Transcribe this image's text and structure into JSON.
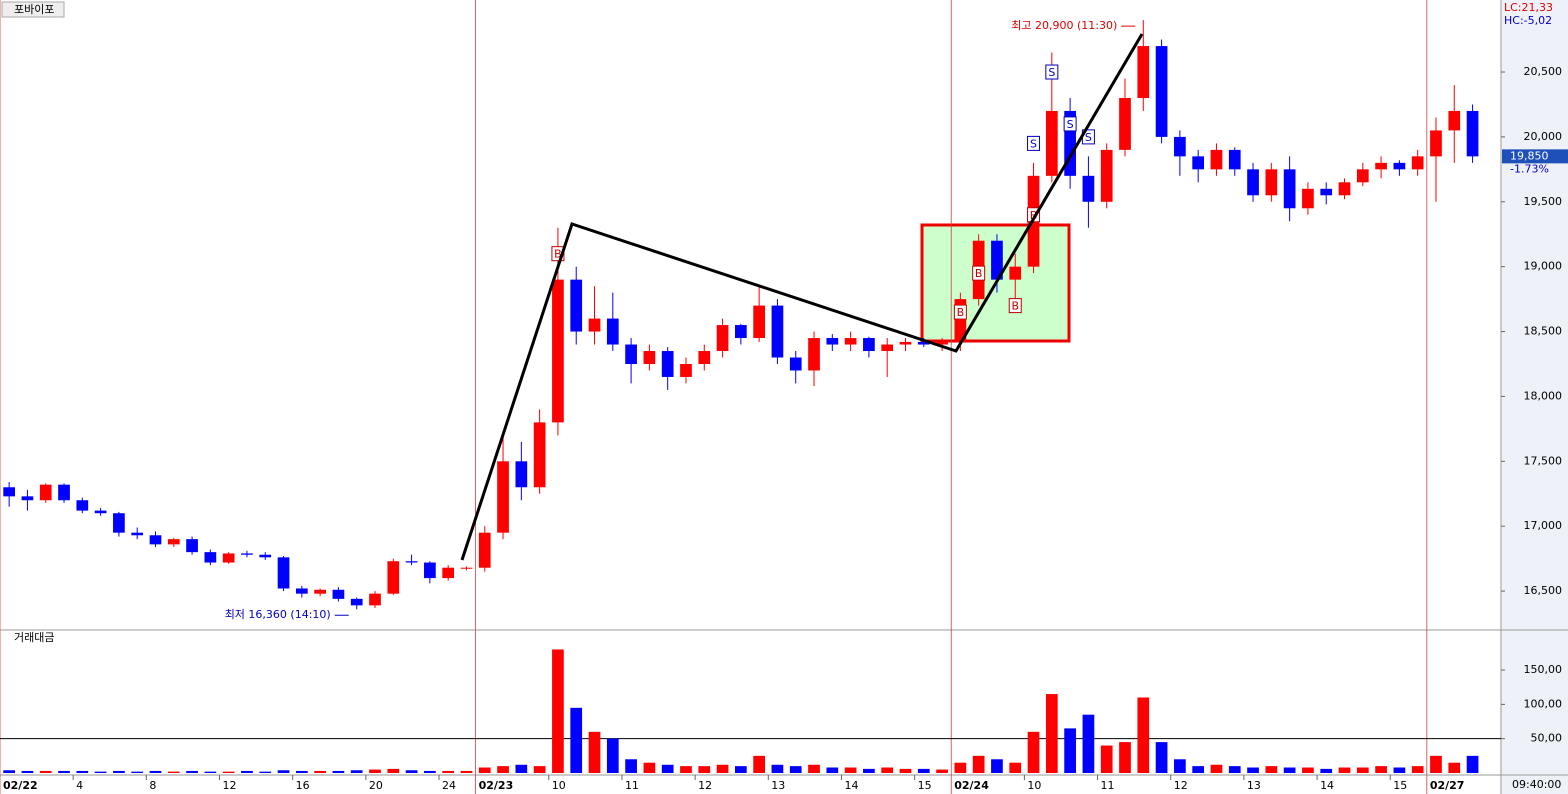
{
  "chart_data": [
    {
      "type": "candlestick",
      "title": "포바이포",
      "legend": [
        "LC:21,33",
        "HC:-5,02"
      ],
      "open": [
        17300,
        17230,
        17200,
        17320,
        17200,
        17120,
        17100,
        16950,
        16930,
        16860,
        16900,
        16800,
        16720,
        16790,
        16780,
        16760,
        16520,
        16480,
        16510,
        16440,
        16390,
        16480,
        16730,
        16720,
        16600,
        16680,
        16680,
        16950,
        17500,
        17300,
        17800,
        18900,
        18500,
        18600,
        18400,
        18250,
        18350,
        18150,
        18250,
        18350,
        18550,
        18450,
        18700,
        18300,
        18200,
        18450,
        18400,
        18450,
        18350,
        18400,
        18420,
        18400,
        18420,
        18750,
        19200,
        18900,
        19000,
        19700,
        20200,
        19700,
        19500,
        19900,
        20300,
        20700,
        20000,
        19850,
        19750,
        19900,
        19750,
        19550,
        19750,
        19450,
        19600,
        19550,
        19650,
        19750,
        19800,
        19750,
        19850,
        20050,
        20200
      ],
      "high": [
        17340,
        17280,
        17330,
        17330,
        17220,
        17140,
        17110,
        16990,
        16960,
        16910,
        16920,
        16820,
        16800,
        16810,
        16800,
        16770,
        16540,
        16520,
        16530,
        16450,
        16500,
        16750,
        16780,
        16730,
        16700,
        16690,
        17000,
        17700,
        17650,
        17900,
        19300,
        19000,
        18850,
        18800,
        18450,
        18400,
        18380,
        18300,
        18400,
        18600,
        18560,
        18850,
        18750,
        18350,
        18500,
        18480,
        18500,
        18460,
        18450,
        18450,
        18450,
        18450,
        18800,
        19250,
        19250,
        19100,
        19800,
        20650,
        20300,
        19850,
        19950,
        20450,
        20900,
        20750,
        20050,
        19900,
        19950,
        19920,
        19800,
        19800,
        19850,
        19650,
        19650,
        19680,
        19800,
        19850,
        19820,
        19900,
        20150,
        20400,
        20250
      ],
      "low": [
        17150,
        17120,
        17180,
        17180,
        17100,
        17080,
        16920,
        16900,
        16840,
        16840,
        16780,
        16700,
        16710,
        16760,
        16740,
        16500,
        16450,
        16460,
        16420,
        16360,
        16370,
        16470,
        16700,
        16560,
        16580,
        16660,
        16650,
        16900,
        17200,
        17250,
        17700,
        18400,
        18400,
        18350,
        18100,
        18200,
        18050,
        18100,
        18200,
        18300,
        18400,
        18420,
        18250,
        18100,
        18080,
        18350,
        18350,
        18300,
        18150,
        18350,
        18380,
        18350,
        18350,
        18700,
        18800,
        18700,
        18950,
        19650,
        19600,
        19300,
        19450,
        19850,
        20200,
        19950,
        19700,
        19650,
        19700,
        19700,
        19500,
        19500,
        19350,
        19400,
        19480,
        19520,
        19620,
        19680,
        19700,
        19700,
        19500,
        19800,
        19800
      ],
      "close": [
        17230,
        17200,
        17320,
        17200,
        17120,
        17100,
        16950,
        16930,
        16860,
        16900,
        16800,
        16720,
        16790,
        16780,
        16760,
        16520,
        16480,
        16510,
        16440,
        16390,
        16480,
        16730,
        16720,
        16600,
        16680,
        16680,
        16950,
        17500,
        17300,
        17800,
        18900,
        18500,
        18600,
        18400,
        18250,
        18350,
        18150,
        18250,
        18350,
        18550,
        18450,
        18700,
        18300,
        18200,
        18450,
        18400,
        18450,
        18350,
        18400,
        18420,
        18400,
        18420,
        18750,
        19200,
        18900,
        19000,
        19700,
        20200,
        19700,
        19500,
        19900,
        20300,
        20700,
        20000,
        19850,
        19750,
        19900,
        19750,
        19550,
        19750,
        19450,
        19600,
        19550,
        19650,
        19750,
        19800,
        19750,
        19850,
        20050,
        20200,
        19850
      ],
      "up_color": "#ff0000",
      "down_color": "#0000ff",
      "xlim": [
        0,
        82
      ],
      "xticks": [
        {
          "value": 0,
          "label": "02/22"
        },
        4,
        8,
        12,
        16,
        20,
        24,
        {
          "value": 26,
          "label": "02/23"
        },
        {
          "value": 30,
          "label": "10"
        },
        {
          "value": 34,
          "label": "11"
        },
        {
          "value": 38,
          "label": "12"
        },
        {
          "value": 42,
          "label": "13"
        },
        {
          "value": 46,
          "label": "14"
        },
        {
          "value": 50,
          "label": "15"
        },
        {
          "value": 52,
          "label": "02/24"
        },
        {
          "value": 56,
          "label": "10"
        },
        {
          "value": 60,
          "label": "11"
        },
        {
          "value": 64,
          "label": "12"
        },
        {
          "value": 68,
          "label": "13"
        },
        {
          "value": 72,
          "label": "14"
        },
        {
          "value": 76,
          "label": "15"
        },
        {
          "value": 78,
          "label": "02/27"
        }
      ],
      "ylim": [
        16200,
        21055
      ],
      "yticks": [
        {
          "value": 16500,
          "label": "16,500"
        },
        {
          "value": 17000,
          "label": "17,000"
        },
        {
          "value": 17500,
          "label": "17,500"
        },
        {
          "value": 18000,
          "label": "18,000"
        },
        {
          "value": 18500,
          "label": "18,500"
        },
        {
          "value": 19000,
          "label": "19,000"
        },
        {
          "value": 19500,
          "label": "19,500"
        },
        {
          "value": 20000,
          "label": "20,000"
        },
        {
          "value": 20500,
          "label": "20,500"
        }
      ],
      "annotations": [
        {
          "text": "최고 20,900 (11:30)",
          "x": 62,
          "y": 20900,
          "color": "#e00000"
        },
        {
          "text": "최저 16,360 (14:10)",
          "x": 19,
          "y": 16360,
          "color": "#0000c0"
        }
      ],
      "signals": [
        {
          "label": "B",
          "x": 30,
          "y": 19100
        },
        {
          "label": "B",
          "x": 52,
          "y": 18650
        },
        {
          "label": "B",
          "x": 53,
          "y": 18950
        },
        {
          "label": "B",
          "x": 55,
          "y": 18700
        },
        {
          "label": "B",
          "x": 56,
          "y": 19400
        },
        {
          "label": "S",
          "x": 57,
          "y": 20500
        },
        {
          "label": "S",
          "x": 58,
          "y": 20100
        },
        {
          "label": "S",
          "x": 56,
          "y": 19950
        },
        {
          "label": "S",
          "x": 59,
          "y": 20000
        }
      ],
      "last_price": {
        "value": 19850,
        "label": "19,850"
      },
      "change": {
        "value": -1.73,
        "label": "-1.73%"
      }
    },
    {
      "type": "volume",
      "title": "거래대금",
      "values": [
        4,
        3,
        3,
        3,
        3,
        2,
        3,
        2,
        3,
        2,
        3,
        2,
        2,
        3,
        2,
        4,
        3,
        3,
        3,
        4,
        5,
        6,
        4,
        3,
        3,
        3,
        8,
        10,
        12,
        10,
        180,
        95,
        60,
        50,
        20,
        15,
        12,
        10,
        10,
        12,
        10,
        25,
        12,
        10,
        12,
        8,
        8,
        6,
        8,
        6,
        6,
        5,
        15,
        25,
        20,
        15,
        60,
        115,
        65,
        85,
        40,
        45,
        110,
        45,
        20,
        10,
        12,
        10,
        8,
        10,
        8,
        8,
        6,
        8,
        8,
        10,
        8,
        10,
        25,
        15,
        25
      ],
      "ylim": [
        0,
        204
      ],
      "yticks": [
        {
          "value": 50,
          "label": "50,00"
        },
        {
          "value": 100,
          "label": "100,00"
        },
        {
          "value": 150,
          "label": "150,00"
        }
      ],
      "ref_line": 50,
      "time_label": "09:40:00"
    }
  ]
}
